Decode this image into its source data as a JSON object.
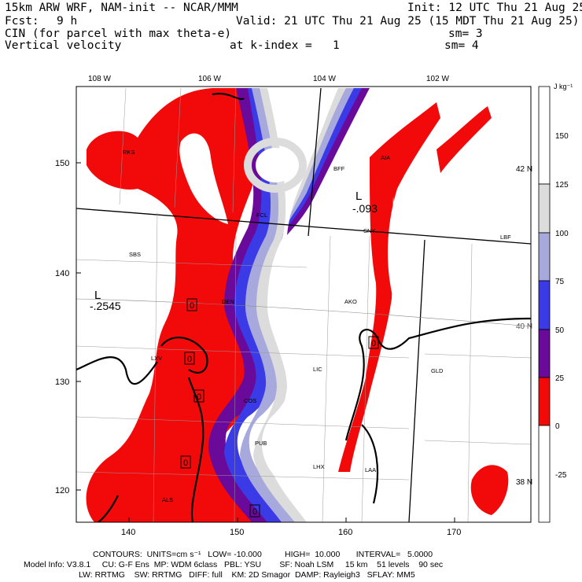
{
  "header": {
    "line1_left": "15km ARW WRF, NAM-init -- NCAR/MMM",
    "line1_right": "Init: 12 UTC Thu 21 Aug 25",
    "fcst_label": "Fcst:",
    "fcst_value": "9 h",
    "valid": "Valid: 21 UTC Thu 21 Aug 25 (15 MDT Thu 21 Aug 25)",
    "field1": "CIN (for parcel with max theta-e)",
    "field1_sm": "sm= 3",
    "field2": "Vertical velocity",
    "field2_level": "at k-index =   1",
    "field2_sm": "sm= 4"
  },
  "map": {
    "lon_labels": [
      "108 W",
      "106 W",
      "104 W",
      "102 W"
    ],
    "lat_labels": [
      "42 N",
      "40 N",
      "38 N"
    ],
    "y_ticks": [
      "150",
      "140",
      "130",
      "120"
    ],
    "x_ticks": [
      "140",
      "150",
      "160",
      "170"
    ],
    "stations": [
      "RKS",
      "BFF",
      "AIA",
      "SNY",
      "LBF",
      "SBS",
      "AKO",
      "LXV",
      "LIC",
      "GLD",
      "COS",
      "PUB",
      "LHX",
      "LAA",
      "ALS",
      "FCL",
      "DEN"
    ],
    "lows": [
      {
        "symbol": "L",
        "value": "-.2545"
      },
      {
        "symbol": "L",
        "value": "-.093"
      }
    ],
    "zero_labels": [
      "0",
      "0",
      "0",
      "0",
      "0",
      "0"
    ]
  },
  "colorbar": {
    "units": "J kg⁻¹",
    "levels": [
      "150",
      "125",
      "100",
      "75",
      "50",
      "25",
      "0",
      "-25"
    ],
    "colors": [
      "#ffffff",
      "#dcdcdc",
      "#a7a9dc",
      "#3a3ae6",
      "#6a0a9a",
      "#f20a0a",
      "#ffffff"
    ]
  },
  "footer": {
    "contours": "CONTOURS:  UNITS=cm s⁻¹   LOW= -10.000          HIGH=  10.000       INTERVAL=   5.0000",
    "model_info": "Model Info: V3.8.1     CU: G-F Ens  MP: WDM 6class   PBL: YSU        SF: Noah LSM     15 km    51 levels    90 sec",
    "model_info2": "LW: RRTMG    SW: RRTMG   DIFF: full    KM: 2D Smagor  DAMP: Rayleigh3   SFLAY: MM5"
  }
}
